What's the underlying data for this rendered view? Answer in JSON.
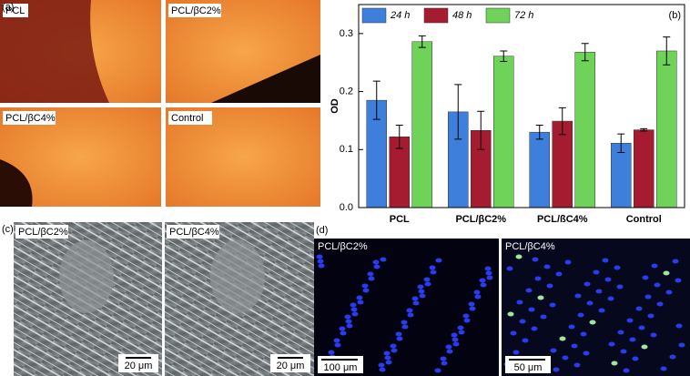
{
  "chart_data": {
    "type": "bar",
    "ylabel": "OD",
    "panel_label": "(b)",
    "categories": [
      "PCL",
      "PCL/βC2%",
      "PCL/ßC4%",
      "Control"
    ],
    "series": [
      {
        "name": "24 h",
        "color": "#3f7fdc",
        "values": [
          0.185,
          0.165,
          0.13,
          0.111
        ],
        "errors": [
          0.033,
          0.047,
          0.012,
          0.016
        ]
      },
      {
        "name": "48 h",
        "color": "#a51c30",
        "values": [
          0.122,
          0.133,
          0.149,
          0.134
        ],
        "errors": [
          0.02,
          0.033,
          0.023,
          0.002
        ]
      },
      {
        "name": "72 h",
        "color": "#6fd35a",
        "values": [
          0.286,
          0.261,
          0.268,
          0.27
        ],
        "errors": [
          0.01,
          0.009,
          0.015,
          0.024
        ]
      }
    ],
    "ylim": [
      0,
      0.35
    ],
    "yticks": [
      {
        "value": 0,
        "label": "0.0"
      },
      0.1,
      0.2,
      0.3
    ],
    "legend": "top-left"
  },
  "panels": {
    "a": {
      "label": "(a)",
      "images": [
        "PCL",
        "PCL/βC2%",
        "PCL/βC4%",
        "Control"
      ]
    },
    "c": {
      "label": "(c)",
      "images": [
        {
          "label": "PCL/βC2%",
          "scale": "20 μm"
        },
        {
          "label": "PCL/βC4%",
          "scale": "20 μm"
        }
      ]
    },
    "d": {
      "label": "(d)",
      "images": [
        {
          "label": "PCL/βC2%",
          "scale": "100 μm"
        },
        {
          "label": "PCL/βC4%",
          "scale": "50 μm"
        }
      ]
    }
  }
}
